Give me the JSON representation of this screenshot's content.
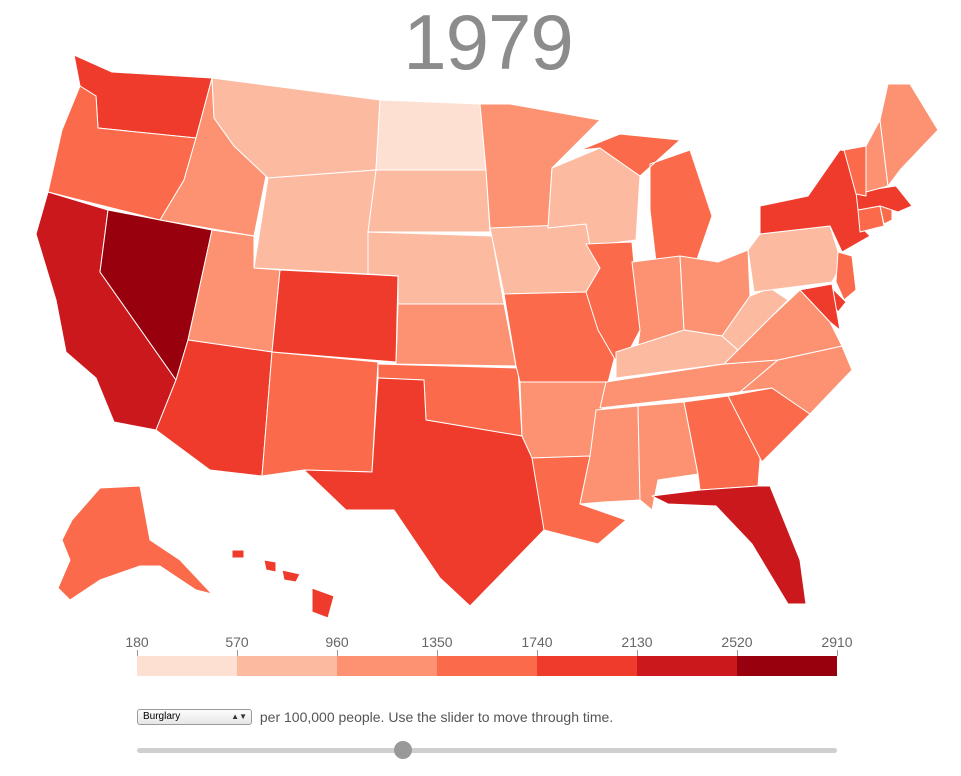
{
  "title": {
    "year": "1979"
  },
  "legend": {
    "ticks": [
      "180",
      "570",
      "960",
      "1350",
      "1740",
      "2130",
      "2520",
      "2910"
    ],
    "colors": [
      "#fee0d2",
      "#fcbba1",
      "#fc9272",
      "#fb6a4a",
      "#ef3b2c",
      "#cb181d",
      "#99000d"
    ]
  },
  "controls": {
    "crime_select": "Burglary",
    "description": "per 100,000 people. Use the slider to move through time."
  },
  "slider": {
    "position": 0.38
  },
  "map": {
    "state_colors": {
      "WA": "#ef3b2c",
      "OR": "#fb6a4a",
      "CA": "#cb181d",
      "NV": "#99000d",
      "ID": "#fc9272",
      "MT": "#fcbba1",
      "WY": "#fcbba1",
      "UT": "#fc9272",
      "AZ": "#ef3b2c",
      "CO": "#ef3b2c",
      "NM": "#fb6a4a",
      "ND": "#fee0d2",
      "SD": "#fcbba1",
      "NE": "#fcbba1",
      "KS": "#fc9272",
      "OK": "#fb6a4a",
      "TX": "#ef3b2c",
      "MN": "#fc9272",
      "IA": "#fcbba1",
      "MO": "#fb6a4a",
      "AR": "#fc9272",
      "LA": "#fb6a4a",
      "WI": "#fcbba1",
      "IL": "#fb6a4a",
      "MI": "#fb6a4a",
      "IN": "#fc9272",
      "OH": "#fc9272",
      "KY": "#fcbba1",
      "TN": "#fc9272",
      "MS": "#fc9272",
      "AL": "#fc9272",
      "GA": "#fb6a4a",
      "FL": "#cb181d",
      "SC": "#fb6a4a",
      "NC": "#fc9272",
      "VA": "#fc9272",
      "WV": "#fcbba1",
      "PA": "#fcbba1",
      "NY": "#ef3b2c",
      "NJ": "#fb6a4a",
      "DE": "#ef3b2c",
      "MD": "#ef3b2c",
      "CT": "#fb6a4a",
      "RI": "#fb6a4a",
      "MA": "#ef3b2c",
      "VT": "#fb6a4a",
      "NH": "#fc9272",
      "ME": "#fc9272",
      "AK": "#fb6a4a",
      "HI": "#ef3b2c"
    }
  }
}
